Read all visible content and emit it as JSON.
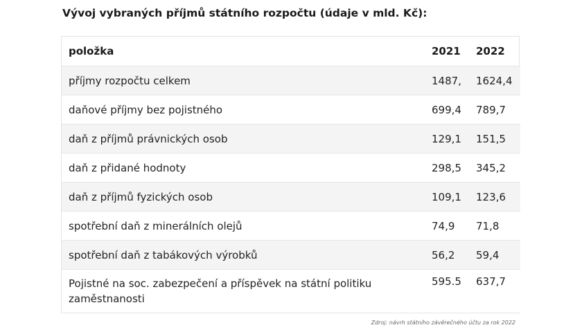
{
  "title": "Vývoj vybraných příjmů státního rozpočtu (údaje v mld. Kč):",
  "table": {
    "headers": [
      "položka",
      "2021",
      "2022"
    ],
    "rows": [
      {
        "item": "příjmy rozpočtu celkem",
        "y2021": "1487,",
        "y2022": "1624,4"
      },
      {
        "item": "daňové příjmy bez pojistného",
        "y2021": "699,4",
        "y2022": "789,7"
      },
      {
        "item": "daň z příjmů právnických osob",
        "y2021": "129,1",
        "y2022": "151,5"
      },
      {
        "item": "daň z přidané hodnoty",
        "y2021": "298,5",
        "y2022": "345,2"
      },
      {
        "item": "daň z příjmů fyzických osob",
        "y2021": "109,1",
        "y2022": "123,6"
      },
      {
        "item": "spotřební daň z minerálních olejů",
        "y2021": "74,9",
        "y2022": "71,8"
      },
      {
        "item": "spotřební daň z tabákových výrobků",
        "y2021": "56,2",
        "y2022": "59,4"
      },
      {
        "item": "Pojistné na soc. zabezpečení a příspěvek na státní politiku zaměstnanosti",
        "y2021": "595.5",
        "y2022": "637,7"
      }
    ]
  },
  "source": "Zdroj: návrh státního závěrečného účtu za rok 2022"
}
